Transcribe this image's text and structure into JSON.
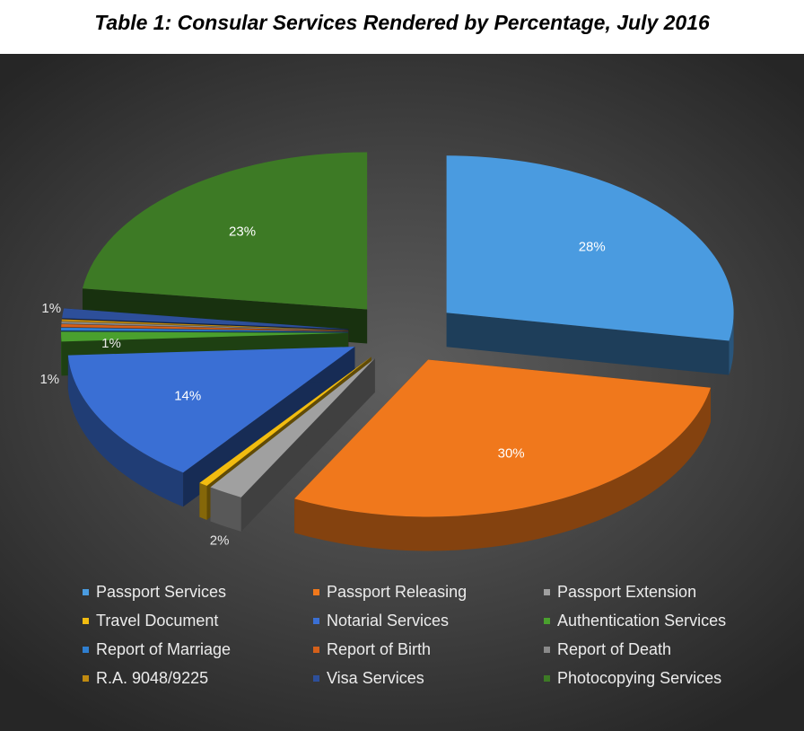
{
  "title": "Table 1: Consular Services Rendered by Percentage, July 2016",
  "chart_data": {
    "type": "pie",
    "style": "3d-exploded",
    "legend_position": "bottom",
    "slices": [
      {
        "name": "Passport Services",
        "value": 28,
        "label": "28%",
        "color": "#4a9be0"
      },
      {
        "name": "Passport Releasing",
        "value": 30,
        "label": "30%",
        "color": "#f0781c"
      },
      {
        "name": "Passport Extension",
        "value": 2,
        "label": "2%",
        "color": "#a0a0a0"
      },
      {
        "name": "Travel Document",
        "value": 0.5,
        "label": "",
        "color": "#f2bc10"
      },
      {
        "name": "Notarial Services",
        "value": 14,
        "label": "14%",
        "color": "#3a6fd4"
      },
      {
        "name": "Authentication Services",
        "value": 1,
        "label": "1%",
        "color": "#4aa02e"
      },
      {
        "name": "Report of Marriage",
        "value": 0.3,
        "label": "",
        "color": "#2f7fd0"
      },
      {
        "name": "Report of Birth",
        "value": 0.3,
        "label": "",
        "color": "#d4601a"
      },
      {
        "name": "Report of Death",
        "value": 0.2,
        "label": "",
        "color": "#8a8a8a"
      },
      {
        "name": "R.A. 9048/9225",
        "value": 0.2,
        "label": "",
        "color": "#c08a10"
      },
      {
        "name": "Visa Services",
        "value": 1,
        "label": "1%",
        "color": "#2d4f9a"
      },
      {
        "name": "Photocopying Services",
        "value": 23,
        "label": "23%",
        "color": "#3d7a25"
      }
    ],
    "extra_labels": [
      "1%"
    ]
  }
}
